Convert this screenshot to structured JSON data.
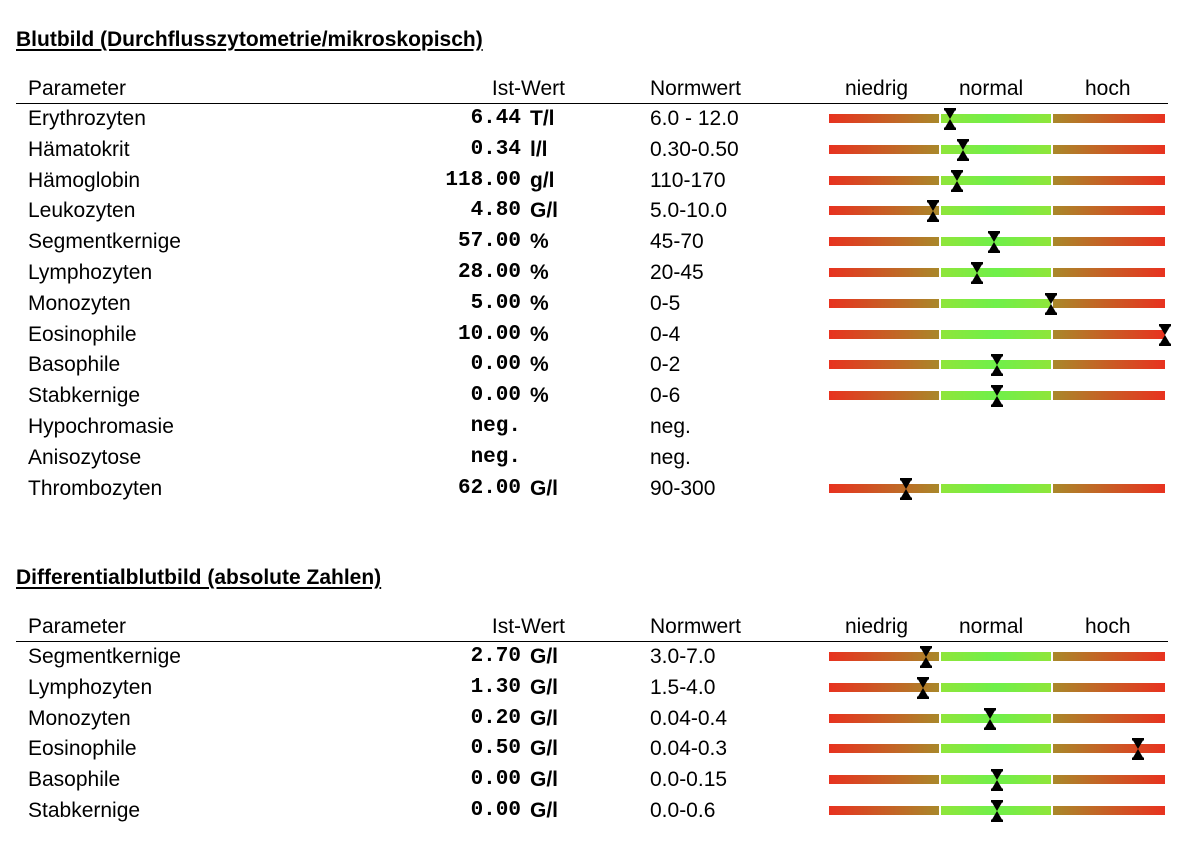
{
  "sections": [
    {
      "title": "Blutbild (Durchflusszytometrie/mikroskopisch)",
      "headers": {
        "param": "Parameter",
        "ist": "Ist-Wert",
        "norm": "Normwert",
        "low": "niedrig",
        "normal": "normal",
        "high": "hoch"
      },
      "rows": [
        {
          "param": "Erythrozyten",
          "value": "6.44",
          "unit": "T/l",
          "norm": "6.0 - 12.0",
          "gauge_position": 0.36
        },
        {
          "param": "Hämatokrit",
          "value": "0.34",
          "unit": "l/l",
          "norm": "0.30-0.50",
          "gauge_position": 0.4
        },
        {
          "param": "Hämoglobin",
          "value": "118.00",
          "unit": "g/l",
          "norm": "110-170",
          "gauge_position": 0.38
        },
        {
          "param": "Leukozyten",
          "value": "4.80",
          "unit": "G/l",
          "norm": "5.0-10.0",
          "gauge_position": 0.31
        },
        {
          "param": "Segmentkernige",
          "value": "57.00",
          "unit": "%",
          "norm": "45-70",
          "gauge_position": 0.49
        },
        {
          "param": "Lymphozyten",
          "value": "28.00",
          "unit": "%",
          "norm": "20-45",
          "gauge_position": 0.44
        },
        {
          "param": "Monozyten",
          "value": "5.00",
          "unit": "%",
          "norm": "0-5",
          "gauge_position": 0.66
        },
        {
          "param": "Eosinophile",
          "value": "10.00",
          "unit": "%",
          "norm": "0-4",
          "gauge_position": 1.0
        },
        {
          "param": "Basophile",
          "value": "0.00",
          "unit": "%",
          "norm": "0-2",
          "gauge_position": 0.5
        },
        {
          "param": "Stabkernige",
          "value": "0.00",
          "unit": "%",
          "norm": "0-6",
          "gauge_position": 0.5
        },
        {
          "param": "Hypochromasie",
          "value": "neg.",
          "unit": "",
          "norm": "neg.",
          "gauge_position": null
        },
        {
          "param": "Anisozytose",
          "value": "neg.",
          "unit": "",
          "norm": "neg.",
          "gauge_position": null
        },
        {
          "param": "Thrombozyten",
          "value": "62.00",
          "unit": "G/l",
          "norm": "90-300",
          "gauge_position": 0.23
        }
      ]
    },
    {
      "title": "Differentialblutbild (absolute Zahlen)",
      "headers": {
        "param": "Parameter",
        "ist": "Ist-Wert",
        "norm": "Normwert",
        "low": "niedrig",
        "normal": "normal",
        "high": "hoch"
      },
      "rows": [
        {
          "param": "Segmentkernige",
          "value": "2.70",
          "unit": "G/l",
          "norm": "3.0-7.0",
          "gauge_position": 0.29
        },
        {
          "param": "Lymphozyten",
          "value": "1.30",
          "unit": "G/l",
          "norm": "1.5-4.0",
          "gauge_position": 0.28
        },
        {
          "param": "Monozyten",
          "value": "0.20",
          "unit": "G/l",
          "norm": "0.04-0.4",
          "gauge_position": 0.48
        },
        {
          "param": "Eosinophile",
          "value": "0.50",
          "unit": "G/l",
          "norm": "0.04-0.3",
          "gauge_position": 0.92
        },
        {
          "param": "Basophile",
          "value": "0.00",
          "unit": "G/l",
          "norm": "0.0-0.15",
          "gauge_position": 0.5
        },
        {
          "param": "Stabkernige",
          "value": "0.00",
          "unit": "G/l",
          "norm": "0.0-0.6",
          "gauge_position": 0.5
        }
      ]
    }
  ],
  "colors": {
    "low_high": "#e8321f",
    "normal": "#6ff04a",
    "transition": "#a9882a",
    "marker": "#000000"
  },
  "icons": {
    "marker": "hourglass-marker-icon"
  }
}
